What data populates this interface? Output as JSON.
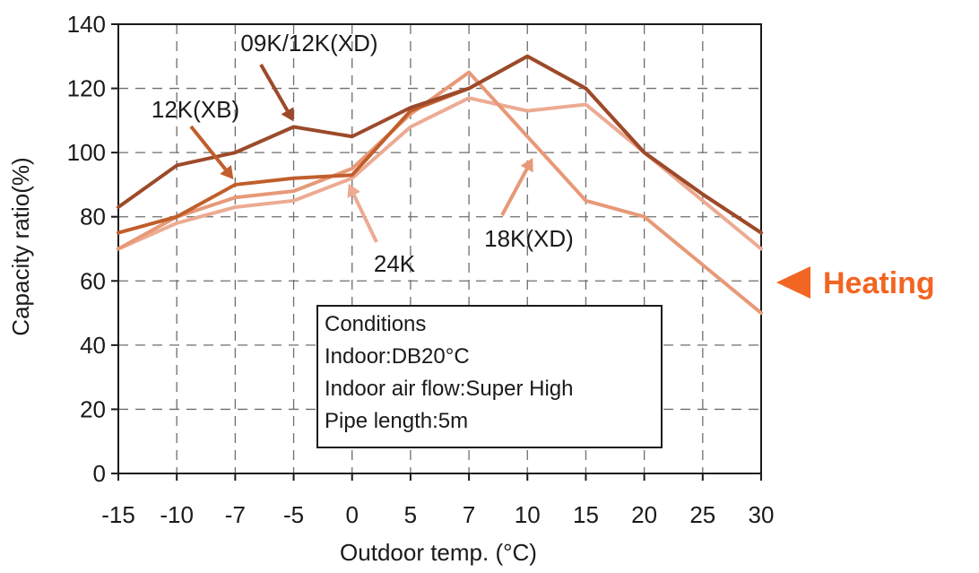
{
  "chart_data": {
    "type": "line",
    "title": "",
    "xlabel": "Outdoor temp. (°C)",
    "ylabel": "Capacity ratio(%)",
    "x_categories": [
      "-15",
      "-10",
      "-7",
      "-5",
      "0",
      "5",
      "7",
      "10",
      "15",
      "20",
      "25",
      "30"
    ],
    "ylim": [
      0,
      140
    ],
    "yticks": [
      "0",
      "20",
      "40",
      "60",
      "80",
      "100",
      "120",
      "140"
    ],
    "grid": true,
    "series": [
      {
        "name": "09K/12K(XD)",
        "color": "#9c4a2a",
        "values": [
          83,
          96,
          100,
          108,
          105,
          114,
          120,
          130,
          120,
          100,
          87,
          75
        ]
      },
      {
        "name": "12K(XB)",
        "color": "#c25e2c",
        "values": [
          75,
          80,
          90,
          92,
          93,
          113,
          120,
          130,
          120,
          100,
          87,
          75
        ]
      },
      {
        "name": "24K",
        "color": "#ecab92",
        "values": [
          70,
          78,
          83,
          85,
          92,
          108,
          117,
          113,
          115,
          100,
          85,
          70
        ]
      },
      {
        "name": "18K(XD)",
        "color": "#e79977",
        "values": [
          70,
          80,
          86,
          88,
          95,
          112,
          125,
          105,
          85,
          80,
          65,
          50
        ]
      }
    ],
    "annotations": [
      {
        "text": "09K/12K(XD)",
        "points_to_series": "09K/12K(XD)",
        "at_x": "-5",
        "at_y": 108
      },
      {
        "text": "12K(XB)",
        "points_to_series": "12K(XB)",
        "at_x": "-7",
        "at_y": 90
      },
      {
        "text": "24K",
        "points_to_series": "24K",
        "at_x": "0",
        "at_y": 92
      },
      {
        "text": "18K(XD)",
        "points_to_series": "18K(XD)",
        "at_x": "10",
        "at_y": 100
      }
    ],
    "conditions": {
      "heading": "Conditions",
      "lines": [
        "Indoor:DB20°C",
        "Indoor air flow:Super High",
        "Pipe length:5m"
      ]
    },
    "mode_label": {
      "text": "Heating",
      "color": "#f26522"
    }
  }
}
